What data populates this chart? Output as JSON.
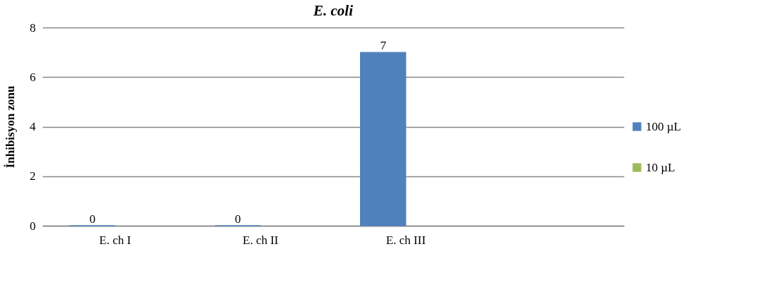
{
  "chart_data": {
    "type": "bar",
    "title": "E. coli",
    "ylabel": "İnhibisyon zonu",
    "categories": [
      "E. ch I",
      "E. ch II",
      "E. ch III",
      null
    ],
    "series": [
      {
        "name": "100 µL",
        "color": "#4f81bd",
        "values": [
          0,
          0,
          7,
          null
        ]
      },
      {
        "name": "10 µL",
        "color": "#9bbb59",
        "values": [
          null,
          null,
          null,
          null
        ]
      }
    ],
    "ylim": [
      0,
      8
    ],
    "yticks": [
      0,
      2,
      4,
      6,
      8
    ],
    "grid": "y",
    "legend": "right",
    "data_labels": true
  }
}
